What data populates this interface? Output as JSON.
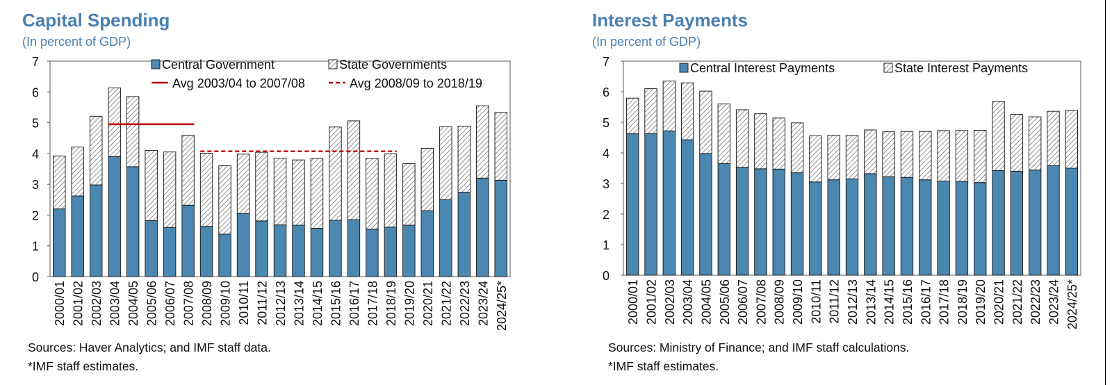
{
  "colors": {
    "title": "#4a80b0",
    "central": "#4a87b1",
    "avg1": "#c00000",
    "avg2": "#c00000"
  },
  "panels": [
    {
      "title": "Capital Spending",
      "subtitle": "(In percent of GDP)",
      "sources": "Sources: Haver Analytics; and IMF staff data.",
      "note": "*IMF staff estimates."
    },
    {
      "title": "Interest Payments",
      "subtitle": "(In percent of GDP)",
      "sources": "Sources: Ministry of Finance; and IMF staff calculations.",
      "note": "*IMF staff estimates."
    }
  ],
  "chart_data": [
    {
      "type": "bar",
      "stacked": true,
      "title": "Capital Spending",
      "subtitle": "(In percent of GDP)",
      "categories": [
        "2000/01",
        "2001/02",
        "2002/03",
        "2003/04",
        "2004/05",
        "2005/06",
        "2006/07",
        "2007/08",
        "2008/09",
        "2009/10",
        "2010/11",
        "2011/12",
        "2012/13",
        "2013/14",
        "2014/15",
        "2015/16",
        "2016/17",
        "2017/18",
        "2018/19",
        "2019/20",
        "2020/21",
        "2021/22",
        "2022/23",
        "2023/24",
        "2024/25*"
      ],
      "series": [
        {
          "name": "Central Government",
          "values": [
            2.2,
            2.62,
            2.98,
            3.9,
            3.57,
            1.82,
            1.6,
            2.32,
            1.63,
            1.38,
            2.05,
            1.81,
            1.68,
            1.67,
            1.57,
            1.83,
            1.85,
            1.54,
            1.61,
            1.67,
            2.14,
            2.5,
            2.74,
            3.2,
            3.13
          ]
        },
        {
          "name": "State Governments",
          "values": [
            1.72,
            1.59,
            2.23,
            2.23,
            2.28,
            2.28,
            2.45,
            2.27,
            2.38,
            2.22,
            1.93,
            2.23,
            2.17,
            2.12,
            2.27,
            3.03,
            3.21,
            2.3,
            2.38,
            2.0,
            2.03,
            2.37,
            2.15,
            2.35,
            2.2
          ]
        }
      ],
      "lines": [
        {
          "name": "Avg 2003/04 to 2007/08",
          "value": 4.95,
          "from": "2003/04",
          "to": "2007/08",
          "style": "solid"
        },
        {
          "name": "Avg 2008/09 to 2018/19",
          "value": 4.07,
          "from": "2008/09",
          "to": "2018/19",
          "style": "dashed"
        }
      ],
      "ylim": [
        0,
        7
      ],
      "yticks": [
        "0",
        "1",
        "2",
        "3",
        "4",
        "5",
        "6",
        "7"
      ],
      "legend_placement": "top",
      "grid": false
    },
    {
      "type": "bar",
      "stacked": true,
      "title": "Interest Payments",
      "subtitle": "(In percent of GDP)",
      "categories": [
        "2000/01",
        "2001/02",
        "2002/03",
        "2003/04",
        "2004/05",
        "2005/06",
        "2006/07",
        "2007/08",
        "2008/09",
        "2009/10",
        "2010/11",
        "2011/12",
        "2012/13",
        "2013/14",
        "2014/15",
        "2015/16",
        "2016/17",
        "2017/18",
        "2018/19",
        "2019/20",
        "2020/21",
        "2021/22",
        "2022/23",
        "2023/24",
        "2024/25*"
      ],
      "series": [
        {
          "name": "Central Interest Payments",
          "values": [
            4.63,
            4.63,
            4.72,
            4.43,
            3.98,
            3.65,
            3.53,
            3.48,
            3.47,
            3.35,
            3.05,
            3.12,
            3.15,
            3.32,
            3.22,
            3.2,
            3.12,
            3.08,
            3.07,
            3.03,
            3.42,
            3.4,
            3.44,
            3.58,
            3.5
          ]
        },
        {
          "name": "State Interest Payments",
          "values": [
            1.16,
            1.47,
            1.63,
            1.86,
            2.04,
            1.95,
            1.88,
            1.8,
            1.67,
            1.63,
            1.51,
            1.46,
            1.42,
            1.43,
            1.47,
            1.5,
            1.58,
            1.65,
            1.66,
            1.71,
            2.26,
            1.86,
            1.74,
            1.78,
            1.89
          ]
        }
      ],
      "ylim": [
        0,
        7
      ],
      "yticks": [
        "0",
        "1",
        "2",
        "3",
        "4",
        "5",
        "6",
        "7"
      ],
      "legend_placement": "top",
      "grid": false
    }
  ]
}
